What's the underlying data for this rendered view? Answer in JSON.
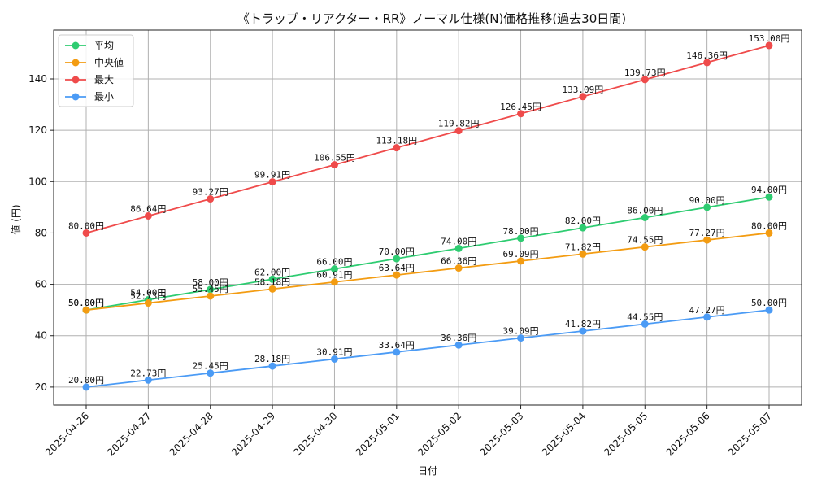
{
  "chart_data": {
    "type": "line",
    "title": "《トラップ・リアクター・RR》ノーマル仕様(N)価格推移(過去30日間)",
    "xlabel": "日付",
    "ylabel": "値 (円)",
    "categories": [
      "2025-04-26",
      "2025-04-27",
      "2025-04-28",
      "2025-04-29",
      "2025-04-30",
      "2025-05-01",
      "2025-05-02",
      "2025-05-03",
      "2025-05-04",
      "2025-05-05",
      "2025-05-06",
      "2025-05-07"
    ],
    "ylim": [
      13,
      159
    ],
    "yticks": [
      20,
      40,
      60,
      80,
      100,
      120,
      140
    ],
    "grid": true,
    "legend_position": "top-left",
    "value_suffix": "円",
    "series": [
      {
        "name": "平均",
        "color": "#2ecc71",
        "values": [
          50.0,
          54.0,
          58.0,
          62.0,
          66.0,
          70.0,
          74.0,
          78.0,
          82.0,
          86.0,
          90.0,
          94.0
        ]
      },
      {
        "name": "中央値",
        "color": "#f39c12",
        "values": [
          50.0,
          52.73,
          55.45,
          58.18,
          60.91,
          63.64,
          66.36,
          69.09,
          71.82,
          74.55,
          77.27,
          80.0
        ]
      },
      {
        "name": "最大",
        "color": "#ef4b4b",
        "values": [
          80.0,
          86.64,
          93.27,
          99.91,
          106.55,
          113.18,
          119.82,
          126.45,
          133.09,
          139.73,
          146.36,
          153.0
        ]
      },
      {
        "name": "最小",
        "color": "#4b9bf5",
        "values": [
          20.0,
          22.73,
          25.45,
          28.18,
          30.91,
          33.64,
          36.36,
          39.09,
          41.82,
          44.55,
          47.27,
          50.0
        ]
      }
    ]
  }
}
